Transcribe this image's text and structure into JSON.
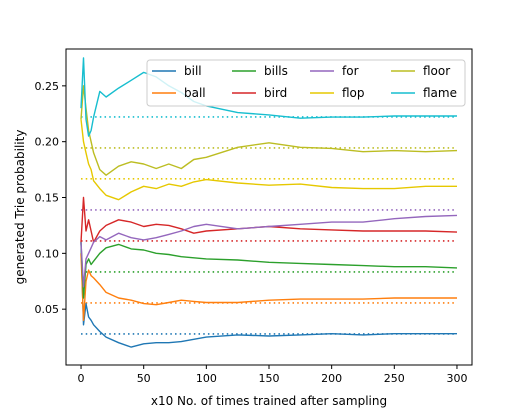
{
  "chart_data": {
    "type": "line",
    "title": "",
    "xlabel": "x10 No. of times trained after sampling",
    "ylabel": "generated Trie probability",
    "xlim": [
      -12,
      312
    ],
    "ylim": [
      0,
      0.283
    ],
    "xticks": [
      0,
      50,
      100,
      150,
      200,
      250,
      300
    ],
    "yticks": [
      0.05,
      0.1,
      0.15,
      0.2,
      0.25
    ],
    "ytick_labels": [
      "0.05",
      "0.10",
      "0.15",
      "0.20",
      "0.25"
    ],
    "grid": false,
    "legend": {
      "placement": "top-right",
      "columns": 4
    },
    "series": [
      {
        "name": "bill",
        "color": "#1f77b4",
        "target": 0.0278,
        "x": [
          0,
          2,
          4,
          6,
          8,
          10,
          15,
          20,
          30,
          40,
          50,
          60,
          70,
          80,
          90,
          100,
          125,
          150,
          175,
          200,
          225,
          250,
          275,
          300
        ],
        "y": [
          0.11,
          0.036,
          0.055,
          0.043,
          0.04,
          0.036,
          0.03,
          0.025,
          0.02,
          0.016,
          0.019,
          0.02,
          0.02,
          0.021,
          0.023,
          0.025,
          0.027,
          0.026,
          0.027,
          0.028,
          0.027,
          0.028,
          0.028,
          0.028
        ]
      },
      {
        "name": "ball",
        "color": "#ff7f0e",
        "target": 0.0556,
        "x": [
          0,
          2,
          4,
          6,
          8,
          10,
          15,
          20,
          30,
          40,
          50,
          60,
          70,
          80,
          90,
          100,
          125,
          150,
          175,
          200,
          225,
          250,
          275,
          300
        ],
        "y": [
          0.1,
          0.04,
          0.075,
          0.085,
          0.08,
          0.078,
          0.072,
          0.065,
          0.06,
          0.058,
          0.055,
          0.054,
          0.056,
          0.058,
          0.057,
          0.056,
          0.056,
          0.058,
          0.059,
          0.059,
          0.059,
          0.06,
          0.06,
          0.06
        ]
      },
      {
        "name": "bills",
        "color": "#2ca02c",
        "target": 0.0833,
        "x": [
          0,
          2,
          4,
          6,
          8,
          10,
          15,
          20,
          30,
          40,
          50,
          60,
          70,
          80,
          90,
          100,
          125,
          150,
          175,
          200,
          225,
          250,
          275,
          300
        ],
        "y": [
          0.11,
          0.06,
          0.09,
          0.095,
          0.09,
          0.093,
          0.1,
          0.105,
          0.108,
          0.104,
          0.103,
          0.1,
          0.099,
          0.097,
          0.096,
          0.095,
          0.094,
          0.092,
          0.091,
          0.09,
          0.089,
          0.088,
          0.088,
          0.087
        ]
      },
      {
        "name": "bird",
        "color": "#d62728",
        "target": 0.1111,
        "x": [
          0,
          2,
          4,
          6,
          8,
          10,
          15,
          20,
          30,
          40,
          50,
          60,
          70,
          80,
          90,
          100,
          125,
          150,
          175,
          200,
          225,
          250,
          275,
          300
        ],
        "y": [
          0.11,
          0.15,
          0.12,
          0.13,
          0.12,
          0.11,
          0.12,
          0.125,
          0.13,
          0.128,
          0.124,
          0.126,
          0.125,
          0.122,
          0.118,
          0.12,
          0.122,
          0.124,
          0.122,
          0.121,
          0.12,
          0.12,
          0.12,
          0.119
        ]
      },
      {
        "name": "for",
        "color": "#9467bd",
        "target": 0.1389,
        "x": [
          0,
          2,
          4,
          6,
          8,
          10,
          15,
          20,
          30,
          40,
          50,
          60,
          70,
          80,
          90,
          100,
          125,
          150,
          175,
          200,
          225,
          250,
          275,
          300
        ],
        "y": [
          0.11,
          0.07,
          0.095,
          0.1,
          0.105,
          0.11,
          0.115,
          0.112,
          0.118,
          0.114,
          0.112,
          0.114,
          0.117,
          0.12,
          0.124,
          0.126,
          0.122,
          0.124,
          0.126,
          0.128,
          0.128,
          0.131,
          0.133,
          0.134
        ]
      },
      {
        "name": "flop",
        "color": "#e6c800",
        "target": 0.1667,
        "x": [
          0,
          2,
          4,
          6,
          8,
          10,
          15,
          20,
          30,
          40,
          50,
          60,
          70,
          80,
          90,
          100,
          125,
          150,
          175,
          200,
          225,
          250,
          275,
          300
        ],
        "y": [
          0.22,
          0.2,
          0.19,
          0.18,
          0.175,
          0.165,
          0.158,
          0.152,
          0.148,
          0.155,
          0.16,
          0.158,
          0.162,
          0.16,
          0.164,
          0.166,
          0.163,
          0.161,
          0.162,
          0.159,
          0.158,
          0.158,
          0.16,
          0.16
        ]
      },
      {
        "name": "floor",
        "color": "#bcbd22",
        "target": 0.1944,
        "x": [
          0,
          2,
          4,
          6,
          8,
          10,
          15,
          20,
          30,
          40,
          50,
          60,
          70,
          80,
          90,
          100,
          125,
          150,
          175,
          200,
          225,
          250,
          275,
          300
        ],
        "y": [
          0.22,
          0.25,
          0.23,
          0.21,
          0.2,
          0.19,
          0.175,
          0.17,
          0.178,
          0.182,
          0.18,
          0.176,
          0.18,
          0.176,
          0.184,
          0.186,
          0.195,
          0.199,
          0.195,
          0.194,
          0.191,
          0.192,
          0.191,
          0.192
        ]
      },
      {
        "name": "flame",
        "color": "#17becf",
        "target": 0.2222,
        "x": [
          0,
          2,
          4,
          6,
          8,
          10,
          15,
          20,
          30,
          40,
          50,
          60,
          70,
          80,
          90,
          100,
          125,
          150,
          175,
          200,
          225,
          250,
          275,
          300
        ],
        "y": [
          0.23,
          0.275,
          0.22,
          0.205,
          0.21,
          0.222,
          0.245,
          0.24,
          0.248,
          0.255,
          0.262,
          0.258,
          0.25,
          0.244,
          0.236,
          0.232,
          0.226,
          0.224,
          0.221,
          0.222,
          0.222,
          0.223,
          0.223,
          0.223
        ]
      }
    ]
  }
}
